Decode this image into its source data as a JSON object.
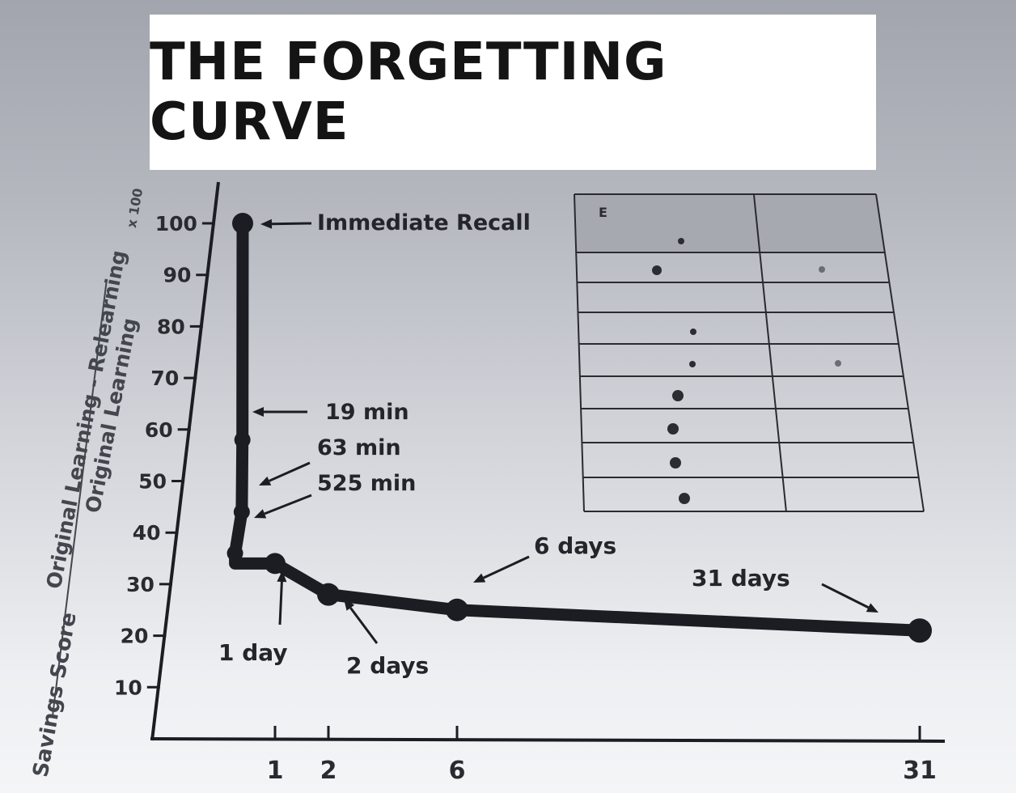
{
  "chart_data": {
    "type": "line",
    "title": "THE FORGETTING CURVE",
    "ylabel_top": "Original Learning - Relearning",
    "ylabel_bottom": "Original Learning",
    "ylabel_side": "Savings Score",
    "ylabel_suffix": "x 100",
    "ylim": [
      0,
      100
    ],
    "yticks": [
      10,
      20,
      30,
      40,
      50,
      60,
      70,
      80,
      90,
      100
    ],
    "ytick_labels": [
      "10",
      "20",
      "30",
      "40",
      "50",
      "60",
      "70",
      "80",
      "90",
      "100"
    ],
    "xticks_days": [
      1,
      2,
      6,
      31
    ],
    "xtick_labels": [
      "1",
      "2",
      "6",
      "31"
    ],
    "x_unit": "days",
    "series": [
      {
        "x": [
          "0 min",
          "19 min",
          "63 min",
          "525 min",
          "1 day",
          "2 days",
          "6 days",
          "31 days"
        ],
        "y": [
          100,
          58,
          44,
          36,
          34,
          28,
          25,
          21
        ]
      }
    ],
    "annotations": [
      {
        "label": "Immediate Recall",
        "point": 0
      },
      {
        "label": "19 min",
        "point": 1
      },
      {
        "label": "63 min",
        "point": 2
      },
      {
        "label": "525 min",
        "point": 3
      },
      {
        "label": "1 day",
        "point": 4
      },
      {
        "label": "2 days",
        "point": 5
      },
      {
        "label": "6 days",
        "point": 6
      },
      {
        "label": "31 days",
        "point": 7
      }
    ],
    "inset_table": {
      "header_mark": "E",
      "rows": 9,
      "columns": 2
    },
    "colors": {
      "curve": "#1c1d22",
      "axis": "#1c1d22",
      "table_line": "#2a2b30",
      "table_header_fill": "#a7a9b0",
      "table_dot": "#6b6d73"
    }
  }
}
